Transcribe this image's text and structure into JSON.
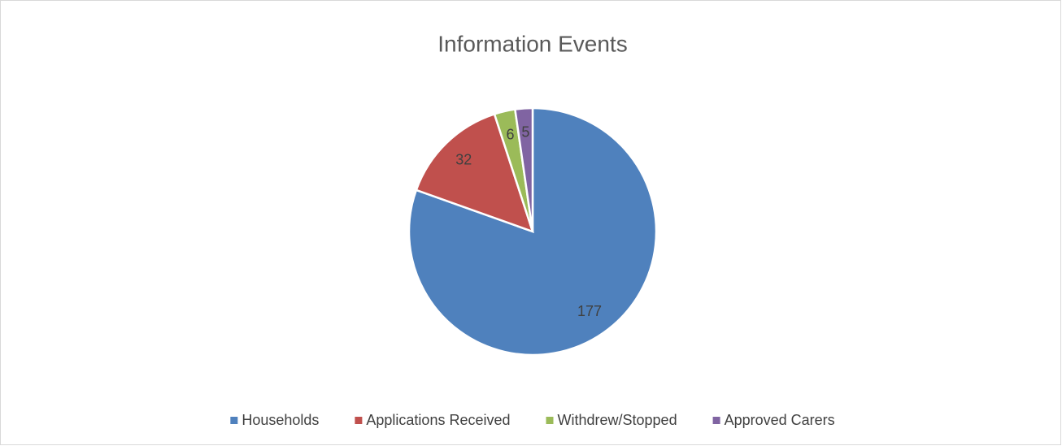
{
  "chart_data": {
    "type": "pie",
    "title": "Information Events",
    "categories": [
      "Households",
      "Applications Received",
      "Withdrew/Stopped",
      "Approved Carers"
    ],
    "values": [
      177,
      32,
      6,
      5
    ],
    "colors": [
      "#4f81bd",
      "#c0504d",
      "#9bbb59",
      "#8064a2"
    ],
    "legend": "bottom"
  }
}
